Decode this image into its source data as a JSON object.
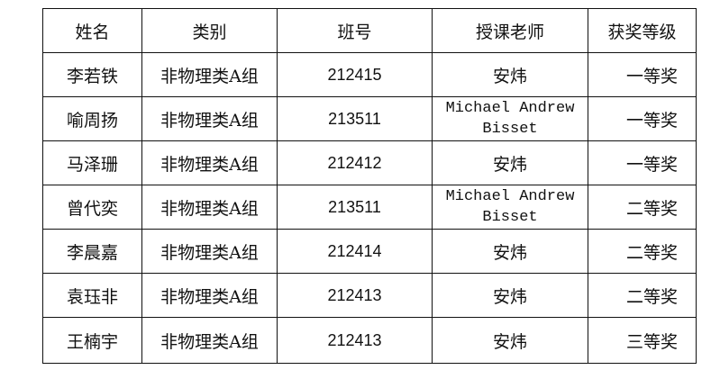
{
  "table": {
    "headers": [
      "姓名",
      "类别",
      "班号",
      "授课老师",
      "获奖等级"
    ],
    "rows": [
      {
        "name": "李若铁",
        "category": "非物理类A组",
        "class_no": "212415",
        "teacher": "安炜",
        "award": "一等奖"
      },
      {
        "name": "喻周扬",
        "category": "非物理类A组",
        "class_no": "213511",
        "teacher": "Michael Andrew Bisset",
        "award": "一等奖"
      },
      {
        "name": "马泽珊",
        "category": "非物理类A组",
        "class_no": "212412",
        "teacher": "安炜",
        "award": "一等奖"
      },
      {
        "name": "曾代奕",
        "category": "非物理类A组",
        "class_no": "213511",
        "teacher": "Michael Andrew Bisset",
        "award": "二等奖"
      },
      {
        "name": "李晨嘉",
        "category": "非物理类A组",
        "class_no": "212414",
        "teacher": "安炜",
        "award": "二等奖"
      },
      {
        "name": "袁珏非",
        "category": "非物理类A组",
        "class_no": "212413",
        "teacher": "安炜",
        "award": "二等奖"
      },
      {
        "name": "王楠宇",
        "category": "非物理类A组",
        "class_no": "212413",
        "teacher": "安炜",
        "award": "三等奖"
      }
    ]
  }
}
